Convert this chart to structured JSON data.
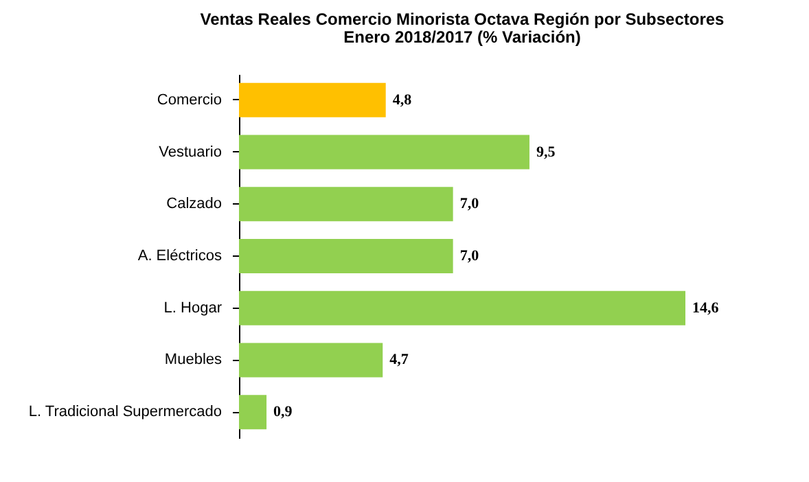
{
  "chart_data": {
    "type": "bar",
    "orientation": "horizontal",
    "title": "Ventas Reales Comercio Minorista Octava Región por Subsectores",
    "subtitle": "Enero  2018/2017 (% Variación)",
    "categories": [
      "Comercio",
      "Vestuario",
      "Calzado",
      "A. Eléctricos",
      "L. Hogar",
      "Muebles",
      "L. Tradicional Supermercado"
    ],
    "values": [
      4.8,
      9.5,
      7.0,
      7.0,
      14.6,
      4.7,
      0.9
    ],
    "value_labels": [
      "4,8",
      "9,5",
      "7,0",
      "7,0",
      "14,6",
      "4,7",
      "0,9"
    ],
    "colors": [
      "#ffc000",
      "#92d050",
      "#92d050",
      "#92d050",
      "#92d050",
      "#92d050",
      "#92d050"
    ],
    "tick_labels": "y"
  }
}
